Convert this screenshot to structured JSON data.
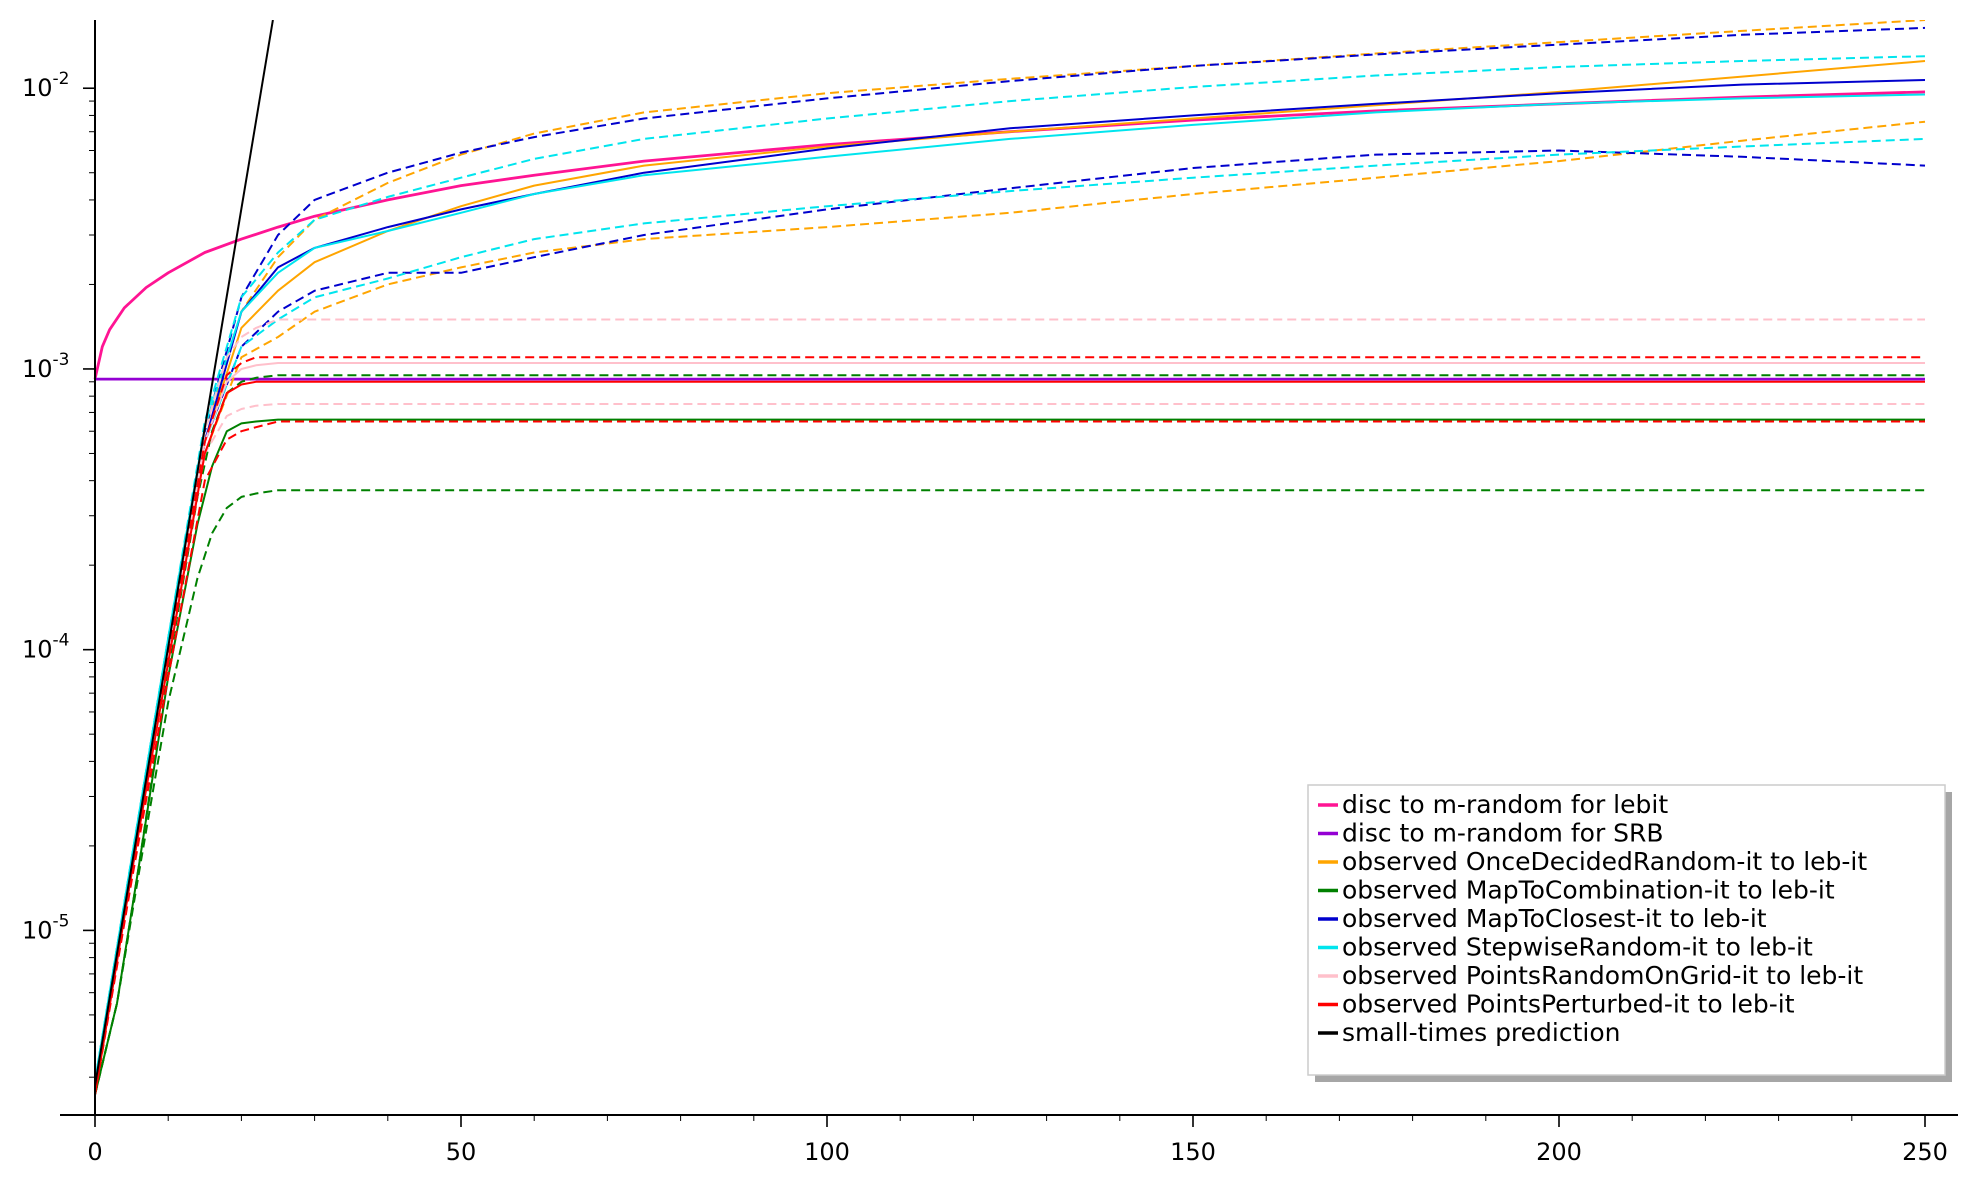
{
  "chart_data": {
    "type": "line",
    "title": "",
    "xlabel": "",
    "ylabel": "",
    "xlim": [
      0,
      250
    ],
    "ylim": [
      2.2e-06,
      0.0175
    ],
    "yscale": "log",
    "grid": false,
    "legend_placement": "lower-right",
    "x_ticks": [
      {
        "value": 0,
        "label": "0"
      },
      {
        "value": 50,
        "label": "50"
      },
      {
        "value": 100,
        "label": "100"
      },
      {
        "value": 150,
        "label": "150"
      },
      {
        "value": 200,
        "label": "200"
      },
      {
        "value": 250,
        "label": "250"
      }
    ],
    "y_ticks": [
      {
        "value": 1e-05,
        "base": "10",
        "exp": "-5"
      },
      {
        "value": 0.0001,
        "base": "10",
        "exp": "-4"
      },
      {
        "value": 0.001,
        "base": "10",
        "exp": "-3"
      },
      {
        "value": 0.01,
        "base": "10",
        "exp": "-2"
      }
    ],
    "series": [
      {
        "name": "disc to m-random for lebit",
        "color": "#ff1493",
        "dash": "solid",
        "width": 2.8,
        "x": [
          0,
          1,
          2,
          4,
          7,
          10,
          15,
          20,
          25,
          30,
          40,
          50,
          60,
          75,
          100,
          125,
          150,
          175,
          200,
          225,
          250
        ],
        "y": [
          0.00092,
          0.0012,
          0.00138,
          0.00165,
          0.00195,
          0.0022,
          0.0026,
          0.0029,
          0.0032,
          0.0035,
          0.004,
          0.0045,
          0.0049,
          0.0055,
          0.0063,
          0.007,
          0.0077,
          0.0083,
          0.0088,
          0.0093,
          0.0097
        ]
      },
      {
        "name": "disc to m-random for SRB",
        "color": "#9400d3",
        "dash": "solid",
        "width": 2.8,
        "x": [
          0,
          250
        ],
        "y": [
          0.00092,
          0.00092
        ]
      },
      {
        "name": "observed OnceDecidedRandom-it to leb-it",
        "color": "#ffa500",
        "dash": "solid",
        "width": 2,
        "x": [
          0,
          5,
          10,
          15,
          20,
          25,
          30,
          40,
          50,
          60,
          75,
          100,
          125,
          150,
          175,
          200,
          225,
          250
        ],
        "y": [
          2.8e-06,
          1.6e-05,
          9.5e-05,
          0.00055,
          0.0014,
          0.0019,
          0.0024,
          0.0031,
          0.0038,
          0.0045,
          0.0053,
          0.0062,
          0.007,
          0.0078,
          0.0087,
          0.0097,
          0.011,
          0.0125
        ]
      },
      {
        "name": "",
        "color": "#ffa500",
        "dash": "dashed",
        "width": 2,
        "x": [
          0,
          5,
          10,
          15,
          20,
          25,
          30,
          40,
          50,
          60,
          75,
          100,
          125,
          150,
          175,
          200,
          225,
          250
        ],
        "y": [
          2.8e-06,
          1.6e-05,
          9.5e-05,
          0.0006,
          0.0016,
          0.0025,
          0.0034,
          0.0046,
          0.0058,
          0.0069,
          0.0082,
          0.0096,
          0.0108,
          0.012,
          0.0133,
          0.0146,
          0.016,
          0.0175
        ]
      },
      {
        "name": "",
        "color": "#ffa500",
        "dash": "dashed",
        "width": 2,
        "x": [
          0,
          5,
          10,
          15,
          20,
          25,
          30,
          40,
          50,
          60,
          75,
          100,
          125,
          150,
          175,
          200,
          225,
          250
        ],
        "y": [
          2.8e-06,
          1.6e-05,
          9.5e-05,
          0.0005,
          0.0011,
          0.0013,
          0.0016,
          0.002,
          0.0023,
          0.0026,
          0.0029,
          0.0032,
          0.0036,
          0.0042,
          0.0048,
          0.0055,
          0.0065,
          0.0076
        ]
      },
      {
        "name": "observed MapToCombination-it to leb-it",
        "color": "#008000",
        "dash": "solid",
        "width": 2,
        "x": [
          0,
          3,
          6,
          10,
          14,
          16,
          18,
          20,
          22,
          25,
          30,
          250
        ],
        "y": [
          2.6e-06,
          5.5e-06,
          1.7e-05,
          8e-05,
          0.00028,
          0.00045,
          0.0006,
          0.00064,
          0.00065,
          0.00066,
          0.00066,
          0.00066
        ]
      },
      {
        "name": "",
        "color": "#008000",
        "dash": "dashed",
        "width": 2,
        "x": [
          0,
          3,
          6,
          10,
          14,
          16,
          18,
          20,
          22,
          25,
          30,
          250
        ],
        "y": [
          2.6e-06,
          5.5e-06,
          1.7e-05,
          8.5e-05,
          0.00035,
          0.0006,
          0.00082,
          0.0009,
          0.00093,
          0.00095,
          0.00095,
          0.00095
        ]
      },
      {
        "name": "",
        "color": "#008000",
        "dash": "dashed",
        "width": 2,
        "x": [
          0,
          3,
          6,
          10,
          14,
          16,
          18,
          20,
          22,
          25,
          30,
          250
        ],
        "y": [
          2.6e-06,
          5.5e-06,
          1.6e-05,
          6.5e-05,
          0.00018,
          0.00026,
          0.00032,
          0.00035,
          0.00036,
          0.00037,
          0.00037,
          0.00037
        ]
      },
      {
        "name": "observed MapToClosest-it to leb-it",
        "color": "#0000cd",
        "dash": "solid",
        "width": 2,
        "x": [
          0,
          5,
          10,
          15,
          20,
          25,
          30,
          40,
          50,
          60,
          75,
          100,
          125,
          150,
          175,
          200,
          225,
          250
        ],
        "y": [
          2.8e-06,
          1.6e-05,
          9.5e-05,
          0.00055,
          0.0016,
          0.0023,
          0.0027,
          0.0032,
          0.0037,
          0.0042,
          0.005,
          0.0061,
          0.0072,
          0.008,
          0.0088,
          0.0096,
          0.0103,
          0.0107
        ]
      },
      {
        "name": "",
        "color": "#0000cd",
        "dash": "dashed",
        "width": 2,
        "x": [
          0,
          5,
          10,
          15,
          20,
          25,
          30,
          40,
          50,
          60,
          75,
          100,
          125,
          150,
          175,
          200,
          225,
          250
        ],
        "y": [
          2.8e-06,
          1.6e-05,
          9.5e-05,
          0.0006,
          0.0018,
          0.003,
          0.004,
          0.005,
          0.0059,
          0.0067,
          0.0078,
          0.0092,
          0.0106,
          0.012,
          0.0132,
          0.0143,
          0.0155,
          0.0164
        ]
      },
      {
        "name": "",
        "color": "#0000cd",
        "dash": "dashed",
        "width": 2,
        "x": [
          0,
          5,
          10,
          15,
          20,
          25,
          30,
          40,
          50,
          60,
          75,
          100,
          125,
          150,
          175,
          200,
          225,
          250
        ],
        "y": [
          2.8e-06,
          1.6e-05,
          9.5e-05,
          0.00055,
          0.0012,
          0.0016,
          0.0019,
          0.0022,
          0.0022,
          0.0025,
          0.003,
          0.0037,
          0.0044,
          0.0052,
          0.0058,
          0.006,
          0.0057,
          0.0053
        ]
      },
      {
        "name": "observed StepwiseRandom-it to leb-it",
        "color": "#00e5ee",
        "dash": "solid",
        "width": 2,
        "x": [
          0,
          5,
          10,
          15,
          20,
          25,
          30,
          40,
          50,
          60,
          75,
          100,
          125,
          150,
          175,
          200,
          225,
          250
        ],
        "y": [
          2.9e-06,
          1.8e-05,
          0.00011,
          0.00062,
          0.0016,
          0.0022,
          0.0027,
          0.0031,
          0.0036,
          0.0042,
          0.0049,
          0.0057,
          0.0066,
          0.0074,
          0.0082,
          0.0088,
          0.0092,
          0.0095
        ]
      },
      {
        "name": "",
        "color": "#00e5ee",
        "dash": "dashed",
        "width": 2,
        "x": [
          0,
          5,
          10,
          15,
          20,
          25,
          30,
          40,
          50,
          60,
          75,
          100,
          125,
          150,
          175,
          200,
          225,
          250
        ],
        "y": [
          2.9e-06,
          1.8e-05,
          0.00011,
          0.00065,
          0.0018,
          0.0026,
          0.0034,
          0.0041,
          0.0048,
          0.0056,
          0.0066,
          0.0078,
          0.009,
          0.0101,
          0.0111,
          0.0119,
          0.0125,
          0.013
        ]
      },
      {
        "name": "",
        "color": "#00e5ee",
        "dash": "dashed",
        "width": 2,
        "x": [
          0,
          5,
          10,
          15,
          20,
          25,
          30,
          40,
          50,
          60,
          75,
          100,
          125,
          150,
          175,
          200,
          225,
          250
        ],
        "y": [
          2.9e-06,
          1.8e-05,
          0.00011,
          0.00055,
          0.0012,
          0.0015,
          0.0018,
          0.0021,
          0.0025,
          0.0029,
          0.0033,
          0.0038,
          0.0043,
          0.0048,
          0.0053,
          0.0058,
          0.0062,
          0.0066
        ]
      },
      {
        "name": "observed PointsRandomOnGrid-it to leb-it",
        "color": "#ffc0cb",
        "dash": "solid",
        "width": 2,
        "x": [
          0,
          5,
          10,
          15,
          18,
          20,
          22,
          25,
          250
        ],
        "y": [
          2.7e-06,
          1.6e-05,
          9.5e-05,
          0.00055,
          0.0009,
          0.001,
          0.00103,
          0.00105,
          0.00105
        ]
      },
      {
        "name": "",
        "color": "#ffc0cb",
        "dash": "dashed",
        "width": 2,
        "x": [
          0,
          5,
          10,
          15,
          18,
          20,
          22,
          25,
          250
        ],
        "y": [
          2.7e-06,
          1.6e-05,
          0.0001,
          0.0006,
          0.0011,
          0.0013,
          0.0014,
          0.0015,
          0.0015
        ]
      },
      {
        "name": "",
        "color": "#ffc0cb",
        "dash": "dashed",
        "width": 2,
        "x": [
          0,
          5,
          10,
          15,
          18,
          20,
          22,
          25,
          250
        ],
        "y": [
          2.7e-06,
          1.6e-05,
          9e-05,
          0.0005,
          0.00068,
          0.00072,
          0.00074,
          0.00075,
          0.00075
        ]
      },
      {
        "name": "observed PointsPerturbed-it to leb-it",
        "color": "#ff0000",
        "dash": "solid",
        "width": 2,
        "x": [
          0,
          5,
          10,
          15,
          18,
          20,
          22,
          25,
          250
        ],
        "y": [
          2.6e-06,
          1.6e-05,
          9e-05,
          0.0005,
          0.00082,
          0.00088,
          0.0009,
          0.0009,
          0.0009
        ]
      },
      {
        "name": "",
        "color": "#ff0000",
        "dash": "dashed",
        "width": 2,
        "x": [
          0,
          5,
          10,
          15,
          18,
          20,
          22,
          25,
          250
        ],
        "y": [
          2.6e-06,
          1.6e-05,
          9.5e-05,
          0.00055,
          0.00095,
          0.00105,
          0.0011,
          0.0011,
          0.0011
        ]
      },
      {
        "name": "",
        "color": "#ff0000",
        "dash": "dashed",
        "width": 2,
        "x": [
          0,
          5,
          10,
          15,
          18,
          20,
          22,
          25,
          250
        ],
        "y": [
          2.6e-06,
          1.5e-05,
          8e-05,
          0.0004,
          0.00056,
          0.0006,
          0.00062,
          0.00065,
          0.00065
        ]
      },
      {
        "name": "small-times prediction",
        "color": "#000000",
        "dash": "solid",
        "width": 2,
        "x": [
          0,
          24.3
        ],
        "y": [
          2.8e-06,
          0.0175
        ]
      }
    ],
    "legend": [
      {
        "label": "disc to m-random for lebit",
        "color": "#ff1493"
      },
      {
        "label": "disc to m-random for SRB",
        "color": "#9400d3"
      },
      {
        "label": "observed OnceDecidedRandom-it to leb-it",
        "color": "#ffa500"
      },
      {
        "label": "observed MapToCombination-it to leb-it",
        "color": "#008000"
      },
      {
        "label": "observed MapToClosest-it to leb-it",
        "color": "#0000cd"
      },
      {
        "label": "observed StepwiseRandom-it to leb-it",
        "color": "#00e5ee"
      },
      {
        "label": "observed PointsRandomOnGrid-it to leb-it",
        "color": "#ffc0cb"
      },
      {
        "label": "observed PointsPerturbed-it to leb-it",
        "color": "#ff0000"
      },
      {
        "label": "small-times prediction",
        "color": "#000000"
      }
    ]
  }
}
